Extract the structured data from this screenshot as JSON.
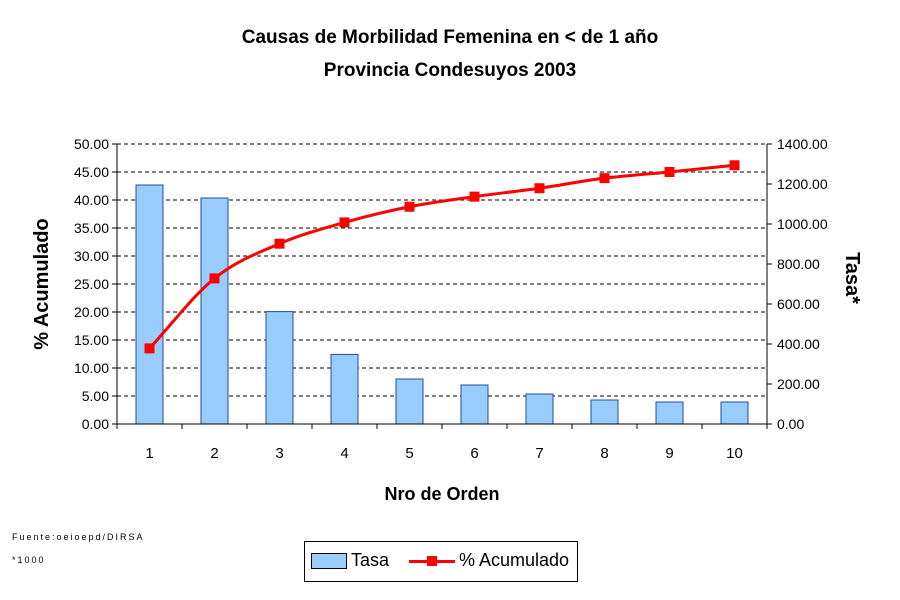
{
  "chart_data": {
    "type": "bar+line",
    "title": "Causas de Morbilidad Femenina en < de 1 año",
    "subtitle": "Provincia Condesuyos 2003",
    "xlabel": "Nro de Orden",
    "ylabel_left": "% Acumulado",
    "ylabel_right": "Tasa*",
    "categories": [
      "1",
      "2",
      "3",
      "4",
      "5",
      "6",
      "7",
      "8",
      "9",
      "10"
    ],
    "ylim_left": [
      0,
      50
    ],
    "yticks_left": [
      "0.00",
      "5.00",
      "10.00",
      "15.00",
      "20.00",
      "25.00",
      "30.00",
      "35.00",
      "40.00",
      "45.00",
      "50.00"
    ],
    "ylim_right": [
      0,
      1400
    ],
    "yticks_right": [
      "0.00",
      "200.00",
      "400.00",
      "600.00",
      "800.00",
      "1000.00",
      "1200.00",
      "1400.00"
    ],
    "grid": "horizontal dashed",
    "legend_position": "bottom",
    "series": [
      {
        "name": "Tasa",
        "kind": "bar",
        "axis": "right",
        "color": "#99ccff",
        "values": [
          1195,
          1130,
          562,
          348,
          225,
          195,
          150,
          120,
          110,
          110
        ]
      },
      {
        "name": "% Acumulado",
        "kind": "line",
        "axis": "left",
        "color": "#ff0000",
        "values": [
          13.5,
          26.0,
          32.2,
          36.0,
          38.8,
          40.6,
          42.1,
          43.9,
          45.0,
          46.2
        ]
      }
    ]
  },
  "source_note": "Fuente:oeioepd/DIRSA",
  "footnote": "*1000"
}
